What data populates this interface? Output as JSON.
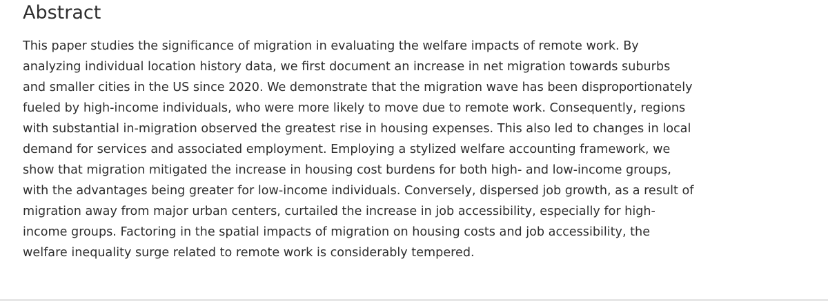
{
  "heading": "Abstract",
  "abstract_lines": [
    "This paper studies the significance of migration in evaluating the welfare impacts of remote work. By",
    "analyzing individual location history data, we first document an increase in net migration towards suburbs",
    "and smaller cities in the US since 2020. We demonstrate that the migration wave has been disproportionately",
    "fueled by high-income individuals, who were more likely to move due to remote work. Consequently, regions",
    "with substantial in-migration observed the greatest rise in housing expenses. This also led to changes in local",
    "demand for services and associated employment. Employing a stylized welfare accounting framework, we",
    "show that migration mitigated the increase in housing cost burdens for both high- and low-income groups,",
    "with the advantages being greater for low-income individuals. Conversely, dispersed job growth, as a result of",
    "migration away from major urban centers, curtailed the increase in job accessibility, especially for high-",
    "income groups. Factoring in the spatial impacts of migration on housing costs and job accessibility, the",
    "welfare inequality surge related to remote work is considerably tempered."
  ]
}
